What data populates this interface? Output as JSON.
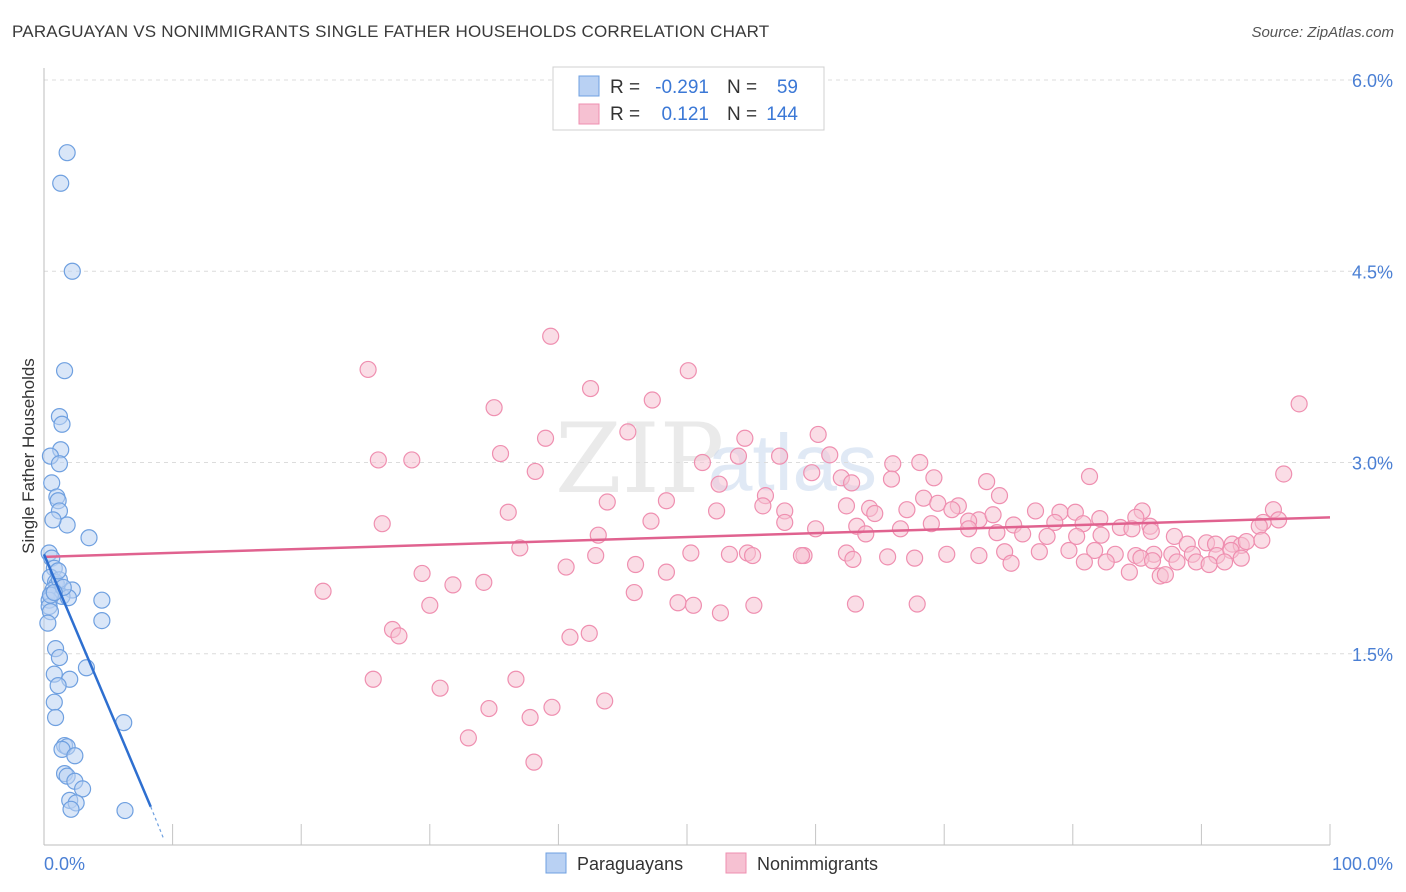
{
  "title": "PARAGUAYAN VS NONIMMIGRANTS SINGLE FATHER HOUSEHOLDS CORRELATION CHART",
  "source": "Source: ZipAtlas.com",
  "watermark": {
    "zip": "ZIP",
    "atlas": "atlas"
  },
  "colors": {
    "blue": "#6fa0e0",
    "blueFill": "#b9d1f3",
    "blueLine": "#2e6fd0",
    "pink": "#ef8fb0",
    "pinkFill": "#f6c1d2",
    "pinkLine": "#e0628f",
    "grid": "#dcdcdc",
    "axisText": "#4a7fd4"
  },
  "chart_data": {
    "type": "scatter",
    "xlabel": "",
    "ylabel": "Single Father Households",
    "xlim": [
      0,
      100
    ],
    "ylim": [
      0,
      6.0
    ],
    "x_tick_labels": {
      "min": "0.0%",
      "max": "100.0%"
    },
    "y_ticks": [
      {
        "value": 1.5,
        "label": "1.5%"
      },
      {
        "value": 3.0,
        "label": "3.0%"
      },
      {
        "value": 4.5,
        "label": "4.5%"
      },
      {
        "value": 6.0,
        "label": "6.0%"
      }
    ],
    "legend": {
      "rows": [
        {
          "r_label": "R =",
          "r_value": "-0.291",
          "n_label": "N =",
          "n_value": "59"
        },
        {
          "r_label": "R =",
          "r_value": "0.121",
          "n_label": "N =",
          "n_value": "144"
        }
      ]
    },
    "series": [
      {
        "name": "Paraguayans",
        "color": "#6fa0e0",
        "trend": {
          "x0": 0.0,
          "y0": 2.28,
          "x1": 8.3,
          "y1": 0.3,
          "dash_x1": 9.3,
          "dash_y1": 0.05
        },
        "points": [
          [
            1.8,
            5.43
          ],
          [
            1.3,
            5.19
          ],
          [
            2.2,
            4.5
          ],
          [
            0.4,
            2.29
          ],
          [
            1.6,
            3.72
          ],
          [
            1.2,
            3.36
          ],
          [
            1.4,
            3.3
          ],
          [
            1.3,
            3.1
          ],
          [
            0.5,
            3.05
          ],
          [
            1.2,
            2.99
          ],
          [
            0.6,
            2.84
          ],
          [
            1.0,
            2.73
          ],
          [
            1.1,
            2.7
          ],
          [
            1.2,
            2.62
          ],
          [
            1.8,
            2.51
          ],
          [
            3.5,
            2.41
          ],
          [
            0.6,
            2.25
          ],
          [
            0.8,
            2.17
          ],
          [
            0.5,
            2.1
          ],
          [
            0.9,
            2.06
          ],
          [
            1.0,
            2.04
          ],
          [
            0.7,
            2.0
          ],
          [
            0.6,
            1.96
          ],
          [
            2.2,
            2.0
          ],
          [
            1.4,
            1.95
          ],
          [
            0.4,
            1.92
          ],
          [
            0.4,
            1.87
          ],
          [
            1.9,
            1.94
          ],
          [
            4.5,
            1.92
          ],
          [
            0.5,
            1.83
          ],
          [
            0.3,
            1.74
          ],
          [
            4.5,
            1.76
          ],
          [
            0.9,
            1.54
          ],
          [
            1.2,
            1.47
          ],
          [
            3.3,
            1.39
          ],
          [
            0.8,
            1.34
          ],
          [
            2.0,
            1.3
          ],
          [
            1.1,
            1.25
          ],
          [
            0.8,
            1.12
          ],
          [
            0.9,
            1.0
          ],
          [
            6.2,
            0.96
          ],
          [
            1.6,
            0.78
          ],
          [
            1.8,
            0.77
          ],
          [
            1.4,
            0.75
          ],
          [
            2.4,
            0.7
          ],
          [
            1.6,
            0.56
          ],
          [
            1.8,
            0.54
          ],
          [
            2.4,
            0.5
          ],
          [
            3.0,
            0.44
          ],
          [
            2.0,
            0.35
          ],
          [
            2.5,
            0.33
          ],
          [
            2.1,
            0.28
          ],
          [
            6.3,
            0.27
          ],
          [
            0.5,
            1.96
          ],
          [
            1.2,
            2.08
          ],
          [
            0.7,
            2.55
          ],
          [
            1.5,
            2.02
          ],
          [
            0.8,
            1.98
          ],
          [
            1.1,
            2.15
          ]
        ]
      },
      {
        "name": "Nonimmigrants",
        "color": "#ef8fb0",
        "trend": {
          "x0": 0.0,
          "y0": 2.26,
          "x1": 100.0,
          "y1": 2.57
        },
        "points": [
          [
            39.4,
            3.99
          ],
          [
            50.1,
            3.72
          ],
          [
            25.2,
            3.73
          ],
          [
            42.5,
            3.58
          ],
          [
            47.3,
            3.49
          ],
          [
            35.0,
            3.43
          ],
          [
            97.6,
            3.46
          ],
          [
            60.2,
            3.22
          ],
          [
            45.4,
            3.24
          ],
          [
            54.5,
            3.19
          ],
          [
            39.0,
            3.19
          ],
          [
            35.5,
            3.07
          ],
          [
            26.0,
            3.02
          ],
          [
            28.6,
            3.02
          ],
          [
            51.2,
            3.0
          ],
          [
            54.0,
            3.05
          ],
          [
            57.2,
            3.05
          ],
          [
            61.1,
            3.06
          ],
          [
            68.1,
            3.0
          ],
          [
            66.0,
            2.99
          ],
          [
            38.2,
            2.93
          ],
          [
            59.7,
            2.92
          ],
          [
            62.0,
            2.88
          ],
          [
            69.2,
            2.88
          ],
          [
            81.3,
            2.89
          ],
          [
            96.4,
            2.91
          ],
          [
            62.8,
            2.84
          ],
          [
            65.9,
            2.87
          ],
          [
            52.5,
            2.83
          ],
          [
            73.3,
            2.85
          ],
          [
            56.1,
            2.74
          ],
          [
            68.4,
            2.72
          ],
          [
            74.3,
            2.74
          ],
          [
            55.9,
            2.66
          ],
          [
            43.8,
            2.69
          ],
          [
            48.4,
            2.7
          ],
          [
            62.4,
            2.66
          ],
          [
            64.2,
            2.64
          ],
          [
            69.5,
            2.68
          ],
          [
            71.1,
            2.66
          ],
          [
            77.1,
            2.62
          ],
          [
            79.0,
            2.61
          ],
          [
            80.2,
            2.61
          ],
          [
            85.4,
            2.62
          ],
          [
            95.6,
            2.63
          ],
          [
            96.0,
            2.55
          ],
          [
            94.8,
            2.53
          ],
          [
            94.5,
            2.5
          ],
          [
            36.1,
            2.61
          ],
          [
            52.3,
            2.62
          ],
          [
            57.6,
            2.62
          ],
          [
            64.6,
            2.6
          ],
          [
            67.1,
            2.63
          ],
          [
            70.6,
            2.63
          ],
          [
            72.7,
            2.55
          ],
          [
            73.8,
            2.59
          ],
          [
            75.4,
            2.51
          ],
          [
            78.6,
            2.53
          ],
          [
            80.8,
            2.52
          ],
          [
            82.1,
            2.56
          ],
          [
            83.7,
            2.49
          ],
          [
            86.0,
            2.5
          ],
          [
            84.9,
            2.57
          ],
          [
            26.3,
            2.52
          ],
          [
            47.2,
            2.54
          ],
          [
            57.6,
            2.53
          ],
          [
            63.2,
            2.5
          ],
          [
            66.6,
            2.48
          ],
          [
            71.9,
            2.54
          ],
          [
            69.0,
            2.52
          ],
          [
            60.0,
            2.48
          ],
          [
            63.9,
            2.44
          ],
          [
            71.9,
            2.48
          ],
          [
            74.1,
            2.45
          ],
          [
            76.1,
            2.44
          ],
          [
            78.0,
            2.42
          ],
          [
            80.3,
            2.42
          ],
          [
            82.2,
            2.43
          ],
          [
            84.6,
            2.48
          ],
          [
            86.1,
            2.46
          ],
          [
            87.9,
            2.42
          ],
          [
            88.9,
            2.36
          ],
          [
            90.4,
            2.37
          ],
          [
            91.1,
            2.36
          ],
          [
            92.4,
            2.36
          ],
          [
            93.1,
            2.35
          ],
          [
            93.5,
            2.38
          ],
          [
            94.7,
            2.39
          ],
          [
            43.1,
            2.43
          ],
          [
            50.3,
            2.29
          ],
          [
            54.7,
            2.29
          ],
          [
            59.1,
            2.27
          ],
          [
            62.4,
            2.29
          ],
          [
            65.6,
            2.26
          ],
          [
            70.2,
            2.28
          ],
          [
            72.7,
            2.27
          ],
          [
            74.7,
            2.3
          ],
          [
            77.4,
            2.3
          ],
          [
            79.7,
            2.31
          ],
          [
            81.7,
            2.31
          ],
          [
            83.3,
            2.28
          ],
          [
            84.9,
            2.27
          ],
          [
            86.3,
            2.28
          ],
          [
            87.7,
            2.28
          ],
          [
            89.3,
            2.28
          ],
          [
            91.2,
            2.27
          ],
          [
            92.3,
            2.31
          ],
          [
            93.1,
            2.25
          ],
          [
            37.0,
            2.33
          ],
          [
            42.9,
            2.27
          ],
          [
            53.3,
            2.28
          ],
          [
            55.1,
            2.27
          ],
          [
            58.9,
            2.27
          ],
          [
            62.9,
            2.24
          ],
          [
            67.7,
            2.25
          ],
          [
            75.2,
            2.21
          ],
          [
            80.9,
            2.22
          ],
          [
            82.6,
            2.22
          ],
          [
            85.3,
            2.25
          ],
          [
            86.2,
            2.23
          ],
          [
            88.1,
            2.22
          ],
          [
            89.6,
            2.22
          ],
          [
            90.6,
            2.2
          ],
          [
            91.8,
            2.22
          ],
          [
            84.4,
            2.14
          ],
          [
            86.8,
            2.11
          ],
          [
            87.2,
            2.12
          ],
          [
            40.6,
            2.18
          ],
          [
            46.0,
            2.2
          ],
          [
            48.4,
            2.14
          ],
          [
            29.4,
            2.13
          ],
          [
            31.8,
            2.04
          ],
          [
            34.2,
            2.06
          ],
          [
            45.9,
            1.98
          ],
          [
            21.7,
            1.99
          ],
          [
            49.3,
            1.9
          ],
          [
            30.0,
            1.88
          ],
          [
            55.2,
            1.88
          ],
          [
            63.1,
            1.89
          ],
          [
            67.9,
            1.89
          ],
          [
            50.5,
            1.88
          ],
          [
            52.6,
            1.82
          ],
          [
            27.1,
            1.69
          ],
          [
            27.6,
            1.64
          ],
          [
            40.9,
            1.63
          ],
          [
            42.4,
            1.66
          ],
          [
            25.6,
            1.3
          ],
          [
            36.7,
            1.3
          ],
          [
            30.8,
            1.23
          ],
          [
            34.6,
            1.07
          ],
          [
            39.5,
            1.08
          ],
          [
            43.6,
            1.13
          ],
          [
            37.8,
            1.0
          ],
          [
            33.0,
            0.84
          ],
          [
            38.1,
            0.65
          ]
        ]
      }
    ]
  },
  "bottom_legend": [
    {
      "label": "Paraguayans"
    },
    {
      "label": "Nonimmigrants"
    }
  ]
}
